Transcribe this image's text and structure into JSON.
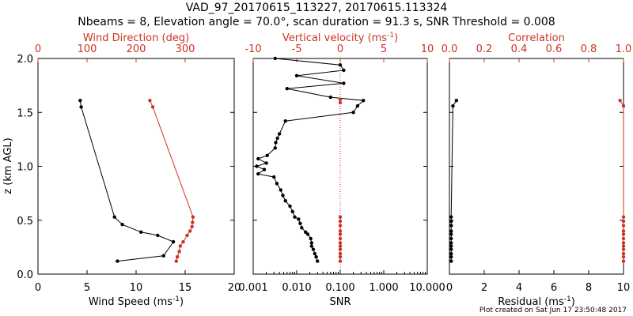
{
  "title": {
    "line1": "VAD_97_20170615_113227, 20170615.113324",
    "line2": "Nbeams = 8, Elevation angle = 70.0°, scan duration = 91.3 s, SNR Threshold = 0.008"
  },
  "footer": "Plot created on Sat Jun 17 23:50:48 2017",
  "colors": {
    "black": "#000000",
    "red": "#cc3322"
  },
  "chart_data": [
    {
      "type": "line",
      "panel": "wind",
      "ylabel": "z (km AGL)",
      "ylim": [
        0.0,
        2.0
      ],
      "yticks": [
        "0.0",
        "0.5",
        "1.0",
        "1.5",
        "2.0"
      ],
      "bottom_axis": {
        "label": "Wind Speed",
        "unit": "(ms",
        "sup": "-1",
        "close": ")",
        "lim": [
          0,
          20
        ],
        "ticks": [
          "0",
          "5",
          "10",
          "15",
          "20"
        ]
      },
      "top_axis": {
        "label": "Wind Direction (deg)",
        "lim": [
          0,
          400
        ],
        "ticks": [
          "0",
          "100",
          "200",
          "300"
        ],
        "tick_values": [
          0,
          100,
          200,
          300
        ]
      },
      "series": [
        {
          "name": "Wind Speed",
          "axis": "bottom",
          "color": "black",
          "x": [
            8.1,
            12.8,
            13.8,
            12.2,
            10.5,
            8.6,
            7.8,
            4.4,
            4.3
          ],
          "y": [
            0.12,
            0.17,
            0.3,
            0.36,
            0.39,
            0.46,
            0.53,
            1.55,
            1.61
          ]
        },
        {
          "name": "Wind Direction",
          "axis": "top",
          "color": "red",
          "x": [
            282,
            284,
            288,
            290,
            296,
            304,
            310,
            314,
            315,
            316,
            234,
            228
          ],
          "y": [
            0.12,
            0.16,
            0.21,
            0.26,
            0.3,
            0.36,
            0.4,
            0.44,
            0.48,
            0.53,
            1.55,
            1.61
          ]
        }
      ]
    },
    {
      "type": "line",
      "panel": "vertical-velocity",
      "ylim": [
        0.0,
        2.0
      ],
      "bottom_axis": {
        "label": "SNR",
        "scale": "log",
        "lim": [
          0.001,
          10
        ],
        "ticks": [
          "0.001",
          "0.010",
          "0.100",
          "1.000",
          "10.000"
        ],
        "tick_values": [
          0.001,
          0.01,
          0.1,
          1,
          10
        ]
      },
      "top_axis": {
        "label": "Vertical velocity",
        "unit": "(ms",
        "sup": "-1",
        "close": ")",
        "lim": [
          -10,
          10
        ],
        "ticks": [
          "-10",
          "-5",
          "0",
          "5",
          "10"
        ],
        "tick_values": [
          -10,
          -5,
          0,
          5,
          10
        ]
      },
      "reference_line": {
        "axis": "top",
        "value": 0,
        "style": "dotted",
        "color": "red"
      },
      "series": [
        {
          "name": "SNR",
          "axis": "bottom",
          "color": "black",
          "x": [
            0.03,
            0.028,
            0.026,
            0.024,
            0.022,
            0.022,
            0.021,
            0.018,
            0.016,
            0.013,
            0.012,
            0.011,
            0.009,
            0.008,
            0.007,
            0.0055,
            0.0048,
            0.0043,
            0.0035,
            0.003,
            0.0013,
            0.0018,
            0.0012,
            0.002,
            0.0013,
            0.0021,
            0.0032,
            0.0033,
            0.0036,
            0.004,
            0.0055,
            0.2,
            0.25,
            0.34,
            0.06,
            0.006,
            0.12,
            0.01,
            0.12,
            0.1,
            0.0032
          ],
          "y": [
            0.12,
            0.16,
            0.19,
            0.23,
            0.26,
            0.29,
            0.33,
            0.37,
            0.39,
            0.43,
            0.47,
            0.51,
            0.53,
            0.58,
            0.63,
            0.68,
            0.73,
            0.78,
            0.84,
            0.9,
            0.93,
            0.97,
            1.0,
            1.03,
            1.07,
            1.1,
            1.17,
            1.22,
            1.26,
            1.3,
            1.42,
            1.5,
            1.56,
            1.61,
            1.64,
            1.72,
            1.77,
            1.84,
            1.89,
            1.94,
            2.0
          ]
        },
        {
          "name": "Vertical velocity",
          "axis": "top",
          "color": "red",
          "x": [
            0,
            0,
            0,
            0,
            0,
            0,
            0,
            0,
            0,
            0,
            0,
            0
          ],
          "y": [
            0.12,
            0.16,
            0.19,
            0.23,
            0.26,
            0.29,
            0.33,
            0.37,
            0.4,
            0.45,
            0.49,
            0.53
          ]
        },
        {
          "name": "Vertical velocity (upper)",
          "axis": "top",
          "color": "red",
          "x": [
            0,
            0
          ],
          "y": [
            1.59,
            1.62
          ]
        }
      ]
    },
    {
      "type": "line",
      "panel": "residual-correlation",
      "ylim": [
        0.0,
        2.0
      ],
      "bottom_axis": {
        "label": "Residual",
        "unit": "(ms",
        "sup": "-1",
        "close": ")",
        "lim": [
          0,
          10
        ],
        "ticks": [
          "0",
          "2",
          "4",
          "6",
          "8",
          "10"
        ],
        "tick_values": [
          0,
          2,
          4,
          6,
          8,
          10
        ]
      },
      "top_axis": {
        "label": "Correlation",
        "lim": [
          0,
          1
        ],
        "ticks": [
          "0.0",
          "0.2",
          "0.4",
          "0.6",
          "0.8",
          "1.0"
        ],
        "tick_values": [
          0,
          0.2,
          0.4,
          0.6,
          0.8,
          1.0
        ]
      },
      "series": [
        {
          "name": "Residual",
          "axis": "bottom",
          "color": "black",
          "x": [
            0.1,
            0.1,
            0.1,
            0.1,
            0.1,
            0.1,
            0.1,
            0.1,
            0.1,
            0.1,
            0.1,
            0.1,
            0.2,
            0.4
          ],
          "y": [
            0.12,
            0.16,
            0.19,
            0.23,
            0.26,
            0.29,
            0.33,
            0.37,
            0.4,
            0.45,
            0.49,
            0.53,
            1.56,
            1.61
          ]
        },
        {
          "name": "Correlation",
          "axis": "top",
          "color": "red",
          "x": [
            1.0,
            1.0,
            1.0,
            1.0,
            1.0,
            1.0,
            1.0,
            1.0,
            1.0,
            1.0,
            1.0,
            1.0,
            1.0,
            0.98
          ],
          "y": [
            0.12,
            0.16,
            0.19,
            0.23,
            0.26,
            0.29,
            0.33,
            0.37,
            0.4,
            0.45,
            0.49,
            0.53,
            1.56,
            1.61
          ]
        }
      ]
    }
  ]
}
